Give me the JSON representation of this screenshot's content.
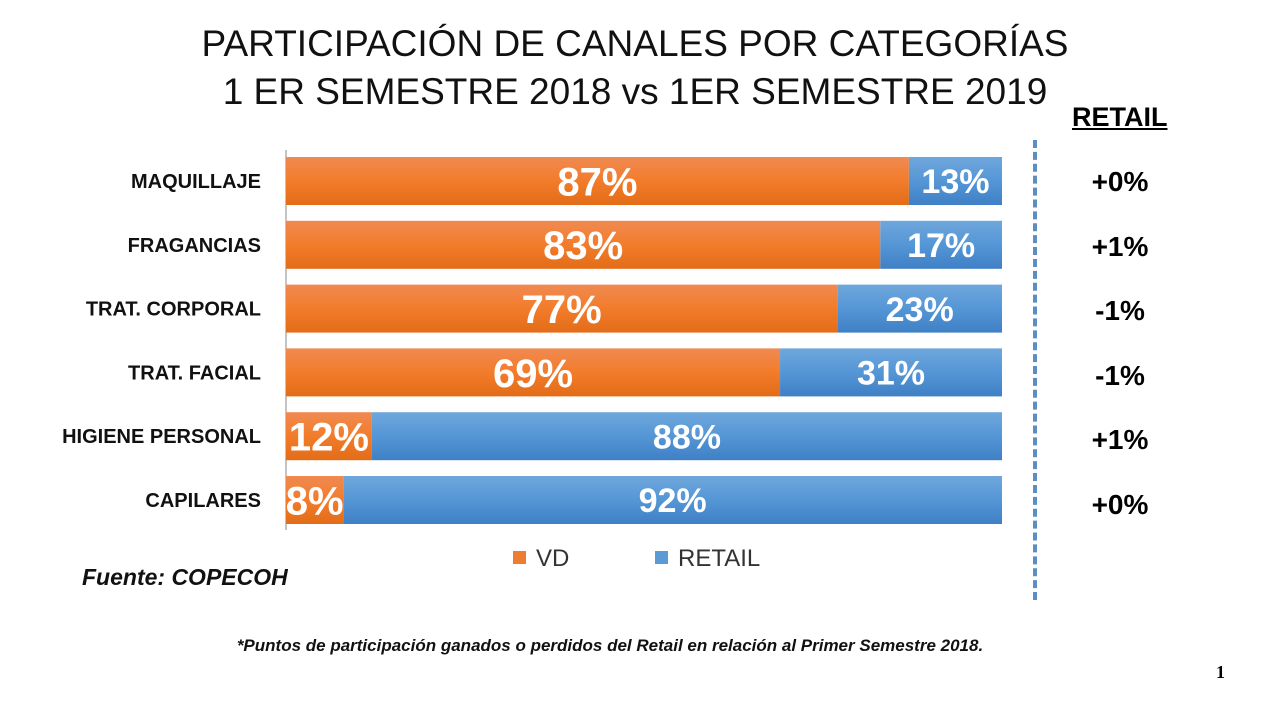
{
  "chart_data": {
    "type": "bar",
    "stacked": true,
    "orientation": "horizontal",
    "title": "PARTICIPACIÓN DE CANALES POR CATEGORÍAS",
    "subtitle": "1 ER SEMESTRE 2018 vs 1ER SEMESTRE 2019",
    "categories": [
      "MAQUILLAJE",
      "FRAGANCIAS",
      "TRAT. CORPORAL",
      "TRAT. FACIAL",
      "HIGIENE PERSONAL",
      "CAPILARES"
    ],
    "series": [
      {
        "name": "VD",
        "color": "#ed7d31",
        "values": [
          87,
          83,
          77,
          69,
          12,
          8
        ]
      },
      {
        "name": "RETAIL",
        "color": "#5b9bd5",
        "values": [
          13,
          17,
          23,
          31,
          88,
          92
        ]
      }
    ],
    "xlim": [
      0,
      100
    ],
    "grid": false,
    "legend": "bottom"
  },
  "retail_change": {
    "header": "RETAIL",
    "values": [
      "+0%",
      "+1%",
      "-1%",
      "-1%",
      "+1%",
      "+0%"
    ]
  },
  "source": "Fuente: COPECOH",
  "footnote": "*Puntos de participación ganados o perdidos del Retail en relación al  Primer Semestre 2018.",
  "page_number": "1"
}
